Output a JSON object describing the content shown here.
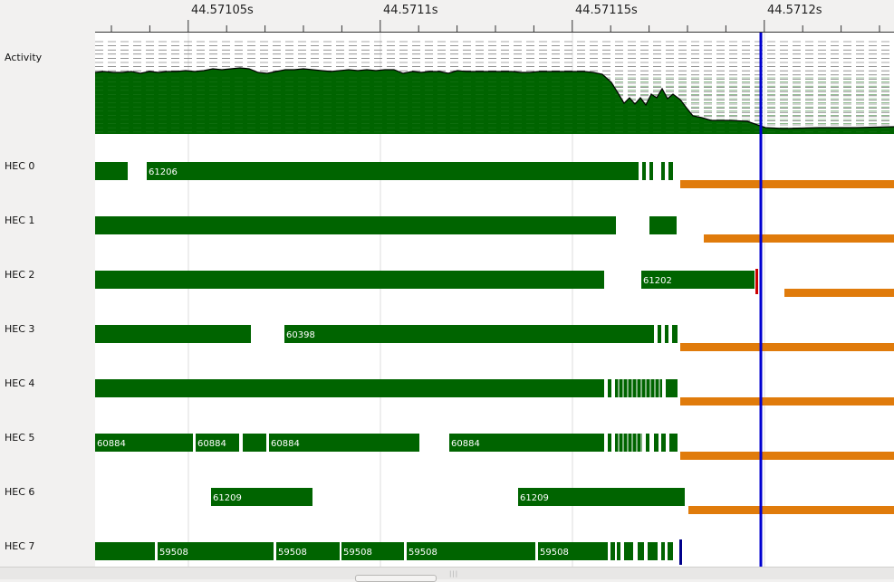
{
  "timeline": {
    "ticks": [
      "44.57105s",
      "44.5711s",
      "44.57115s",
      "44.5712s"
    ],
    "activity_label": "Activity",
    "lanes": [
      {
        "label": "HEC 0",
        "events": [
          {
            "start": 0,
            "end": 36,
            "kind": "run"
          },
          {
            "start": 57,
            "end": 600,
            "kind": "run",
            "text": "61206"
          },
          {
            "start": 604,
            "end": 608,
            "kind": "run"
          },
          {
            "start": 612,
            "end": 616,
            "kind": "run"
          },
          {
            "start": 625,
            "end": 629,
            "kind": "run"
          },
          {
            "start": 633,
            "end": 638,
            "kind": "run"
          },
          {
            "start": 646,
            "end": 882,
            "kind": "gc"
          }
        ]
      },
      {
        "label": "HEC 1",
        "events": [
          {
            "start": 0,
            "end": 575,
            "kind": "run"
          },
          {
            "start": 612,
            "end": 642,
            "kind": "run"
          },
          {
            "start": 672,
            "end": 882,
            "kind": "gc"
          }
        ]
      },
      {
        "label": "HEC 2",
        "events": [
          {
            "start": 0,
            "end": 562,
            "kind": "run"
          },
          {
            "start": 603,
            "end": 728,
            "kind": "run",
            "text": "61202"
          },
          {
            "start": 729,
            "end": 732,
            "kind": "mark"
          },
          {
            "start": 761,
            "end": 882,
            "kind": "gc"
          }
        ]
      },
      {
        "label": "HEC 3",
        "events": [
          {
            "start": 0,
            "end": 172,
            "kind": "run"
          },
          {
            "start": 209,
            "end": 617,
            "kind": "run",
            "text": "60398"
          },
          {
            "start": 621,
            "end": 625,
            "kind": "run"
          },
          {
            "start": 629,
            "end": 633,
            "kind": "run"
          },
          {
            "start": 637,
            "end": 643,
            "kind": "run"
          },
          {
            "start": 646,
            "end": 882,
            "kind": "gc"
          }
        ]
      },
      {
        "label": "HEC 4",
        "events": [
          {
            "start": 0,
            "end": 562,
            "kind": "run"
          },
          {
            "start": 566,
            "end": 570,
            "kind": "run"
          },
          {
            "start": 574,
            "end": 626,
            "kind": "dense"
          },
          {
            "start": 630,
            "end": 643,
            "kind": "run"
          },
          {
            "start": 646,
            "end": 882,
            "kind": "gc"
          }
        ]
      },
      {
        "label": "HEC 5",
        "events": [
          {
            "start": 0,
            "end": 108,
            "kind": "run",
            "text": "60884"
          },
          {
            "start": 111,
            "end": 159,
            "kind": "run",
            "text": "60884"
          },
          {
            "start": 163,
            "end": 189,
            "kind": "run"
          },
          {
            "start": 192,
            "end": 358,
            "kind": "run",
            "text": "60884"
          },
          {
            "start": 391,
            "end": 562,
            "kind": "run",
            "text": "60884"
          },
          {
            "start": 566,
            "end": 570,
            "kind": "run"
          },
          {
            "start": 574,
            "end": 604,
            "kind": "dense"
          },
          {
            "start": 608,
            "end": 612,
            "kind": "run"
          },
          {
            "start": 617,
            "end": 622,
            "kind": "run"
          },
          {
            "start": 625,
            "end": 630,
            "kind": "run"
          },
          {
            "start": 634,
            "end": 643,
            "kind": "run"
          },
          {
            "start": 646,
            "end": 882,
            "kind": "gc"
          }
        ]
      },
      {
        "label": "HEC 6",
        "events": [
          {
            "start": 128,
            "end": 240,
            "kind": "run",
            "text": "61209"
          },
          {
            "start": 467,
            "end": 651,
            "kind": "run",
            "text": "61209"
          },
          {
            "start": 655,
            "end": 882,
            "kind": "gc"
          }
        ]
      },
      {
        "label": "HEC 7",
        "events": [
          {
            "start": 0,
            "end": 66,
            "kind": "run"
          },
          {
            "start": 69,
            "end": 197,
            "kind": "run",
            "text": "59508"
          },
          {
            "start": 200,
            "end": 270,
            "kind": "run",
            "text": "59508"
          },
          {
            "start": 272,
            "end": 341,
            "kind": "run",
            "text": "59508"
          },
          {
            "start": 344,
            "end": 486,
            "kind": "run",
            "text": "59508"
          },
          {
            "start": 489,
            "end": 566,
            "kind": "run",
            "text": "59508"
          },
          {
            "start": 569,
            "end": 574,
            "kind": "run"
          },
          {
            "start": 576,
            "end": 580,
            "kind": "run"
          },
          {
            "start": 584,
            "end": 594,
            "kind": "run"
          },
          {
            "start": 599,
            "end": 606,
            "kind": "run"
          },
          {
            "start": 610,
            "end": 621,
            "kind": "run"
          },
          {
            "start": 625,
            "end": 629,
            "kind": "run"
          },
          {
            "start": 632,
            "end": 638,
            "kind": "run"
          },
          {
            "start": 645,
            "end": 648,
            "kind": "mark-blue"
          },
          {
            "start": 674,
            "end": 704,
            "kind": "gc-small"
          }
        ]
      }
    ],
    "activity_profile": [
      [
        0,
        34
      ],
      [
        10,
        33
      ],
      [
        20,
        34
      ],
      [
        30,
        34
      ],
      [
        40,
        33
      ],
      [
        50,
        35
      ],
      [
        60,
        33
      ],
      [
        70,
        34
      ],
      [
        80,
        33
      ],
      [
        90,
        33
      ],
      [
        100,
        32
      ],
      [
        110,
        33
      ],
      [
        120,
        32
      ],
      [
        130,
        30
      ],
      [
        140,
        31
      ],
      [
        150,
        30
      ],
      [
        160,
        29
      ],
      [
        170,
        30
      ],
      [
        180,
        34
      ],
      [
        190,
        35
      ],
      [
        200,
        33
      ],
      [
        210,
        31
      ],
      [
        220,
        31
      ],
      [
        230,
        30
      ],
      [
        240,
        31
      ],
      [
        250,
        32
      ],
      [
        260,
        33
      ],
      [
        270,
        32
      ],
      [
        280,
        31
      ],
      [
        290,
        32
      ],
      [
        300,
        31
      ],
      [
        310,
        32
      ],
      [
        320,
        31
      ],
      [
        330,
        31
      ],
      [
        340,
        35
      ],
      [
        350,
        33
      ],
      [
        360,
        34
      ],
      [
        370,
        33
      ],
      [
        380,
        33
      ],
      [
        390,
        35
      ],
      [
        400,
        32
      ],
      [
        410,
        33
      ],
      [
        420,
        33
      ],
      [
        430,
        33
      ],
      [
        440,
        33
      ],
      [
        450,
        33
      ],
      [
        460,
        33
      ],
      [
        470,
        34
      ],
      [
        480,
        34
      ],
      [
        490,
        33
      ],
      [
        500,
        33
      ],
      [
        510,
        33
      ],
      [
        520,
        33
      ],
      [
        530,
        33
      ],
      [
        540,
        33
      ],
      [
        550,
        34
      ],
      [
        560,
        36
      ],
      [
        570,
        45
      ],
      [
        578,
        58
      ],
      [
        584,
        68
      ],
      [
        590,
        62
      ],
      [
        596,
        69
      ],
      [
        602,
        62
      ],
      [
        608,
        70
      ],
      [
        614,
        58
      ],
      [
        620,
        62
      ],
      [
        626,
        52
      ],
      [
        632,
        63
      ],
      [
        638,
        58
      ],
      [
        646,
        64
      ],
      [
        652,
        72
      ],
      [
        660,
        82
      ],
      [
        670,
        84
      ],
      [
        680,
        87
      ],
      [
        700,
        87
      ],
      [
        720,
        88
      ],
      [
        740,
        95
      ],
      [
        760,
        96
      ],
      [
        800,
        95
      ],
      [
        840,
        95
      ],
      [
        882,
        94
      ]
    ]
  }
}
